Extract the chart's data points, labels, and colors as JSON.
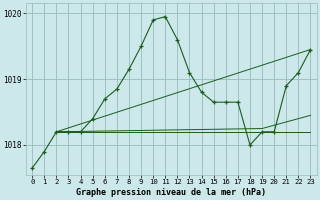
{
  "title": "Graphe pression niveau de la mer (hPa)",
  "background_color": "#cce8ea",
  "line_color": "#1a5c1a",
  "grid_color": "#99bbbb",
  "xlim": [
    -0.5,
    23.5
  ],
  "ylim": [
    1017.55,
    1020.15
  ],
  "yticks": [
    1018,
    1019,
    1020
  ],
  "xticks": [
    0,
    1,
    2,
    3,
    4,
    5,
    6,
    7,
    8,
    9,
    10,
    11,
    12,
    13,
    14,
    15,
    16,
    17,
    18,
    19,
    20,
    21,
    22,
    23
  ],
  "series_main": {
    "x": [
      0,
      1,
      2,
      3,
      4,
      5,
      6,
      7,
      8,
      9,
      10,
      11,
      12,
      13,
      14,
      15,
      16,
      17,
      18,
      19,
      20,
      21,
      22,
      23
    ],
    "y": [
      1017.65,
      1017.9,
      1018.2,
      1018.2,
      1018.2,
      1018.4,
      1018.7,
      1018.85,
      1019.15,
      1019.5,
      1019.9,
      1019.95,
      1019.6,
      1019.1,
      1018.8,
      1018.65,
      1018.65,
      1018.65,
      1018.0,
      1018.2,
      1018.2,
      1018.9,
      1019.1,
      1019.45
    ]
  },
  "series_straight": [
    {
      "x": [
        2,
        23
      ],
      "y": [
        1018.2,
        1019.45
      ]
    },
    {
      "x": [
        2,
        19,
        23
      ],
      "y": [
        1018.2,
        1018.25,
        1018.45
      ]
    },
    {
      "x": [
        2,
        19,
        23
      ],
      "y": [
        1018.2,
        1018.2,
        1018.2
      ]
    }
  ]
}
